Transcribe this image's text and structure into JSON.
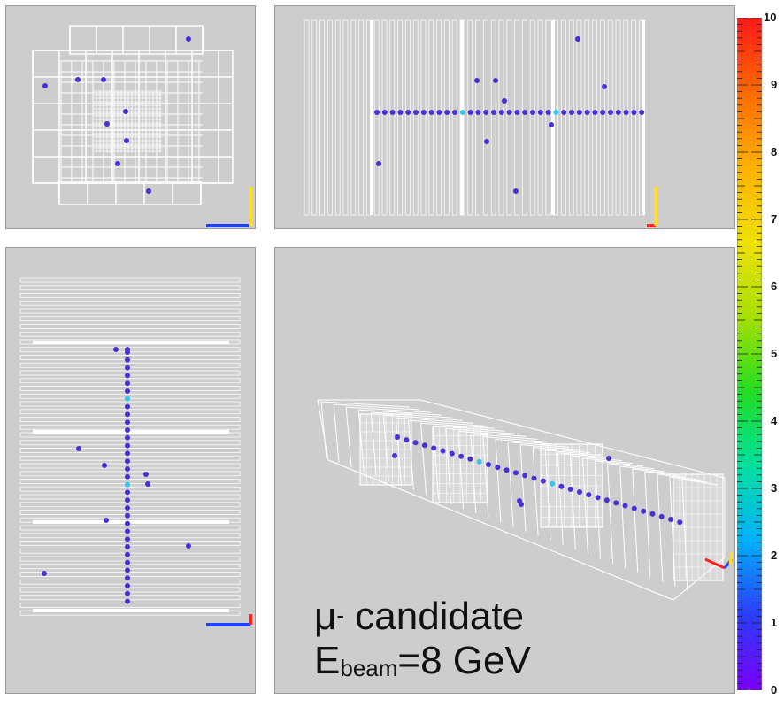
{
  "event_label": {
    "particle": "μ",
    "charge": "-",
    "candidate_text": " candidate",
    "energy_symbol": "E",
    "energy_subscript": "beam",
    "energy_value": "=8 GeV"
  },
  "color_scale": {
    "labels": [
      "0",
      "1",
      "2",
      "3",
      "4",
      "5",
      "6",
      "7",
      "8",
      "9",
      "10"
    ],
    "min": 0,
    "max": 10,
    "colors": [
      "#7a00ff",
      "#2b3cff",
      "#00b0ff",
      "#00e0a0",
      "#22dd22",
      "#a8e000",
      "#f0e000",
      "#ffb000",
      "#ff6a00",
      "#ff1a1a"
    ]
  },
  "hit_colors": {
    "normal": "#4a2fd6",
    "high": "#33c8e8"
  },
  "axis_colors": {
    "x": "#2040ff",
    "y": "#ffe020",
    "z": "#ff2020"
  }
}
